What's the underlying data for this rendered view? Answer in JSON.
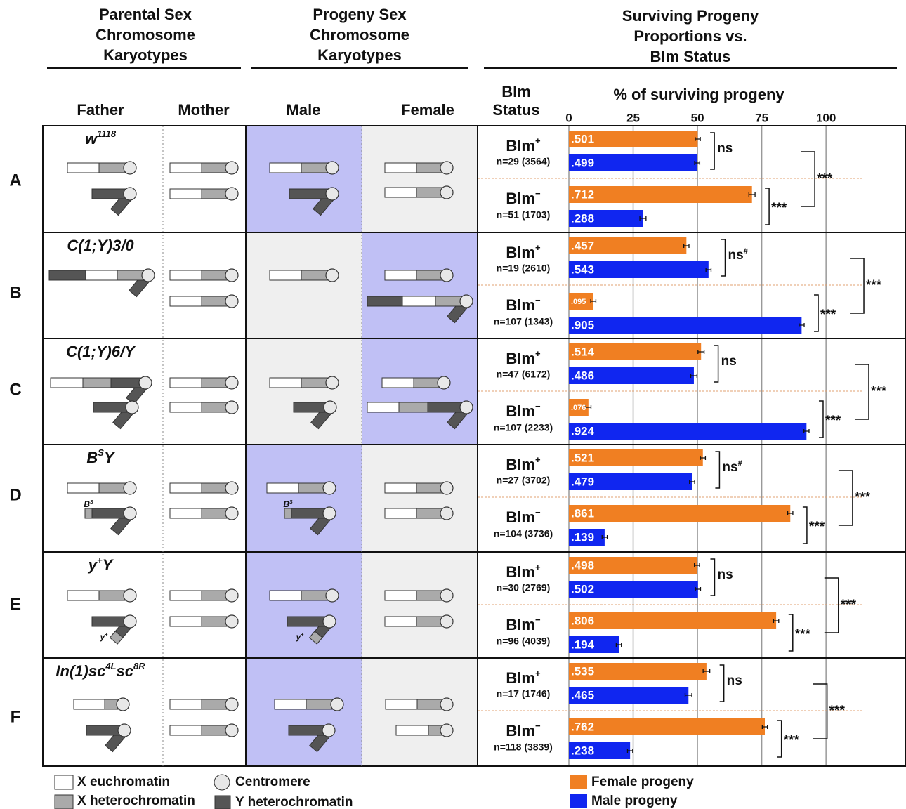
{
  "headers": {
    "parental": [
      "Parental Sex",
      "Chromosome",
      "Karyotypes"
    ],
    "progeny": [
      "Progeny Sex",
      "Chromosome",
      "Karyotypes"
    ],
    "surviving": [
      "Surviving Progeny",
      "Proportions vs.",
      "Blm Status"
    ]
  },
  "columns": {
    "father": "Father",
    "mother": "Mother",
    "male": "Male",
    "female": "Female",
    "blm_status": [
      "Blm",
      "Status"
    ]
  },
  "rows": [
    {
      "letter": "A",
      "genotype": [
        {
          "text": "w"
        },
        {
          "text": "1118",
          "sup": true
        }
      ],
      "highlight": "male"
    },
    {
      "letter": "B",
      "genotype": [
        {
          "text": "C(1;Y)3/0"
        }
      ],
      "highlight": "female"
    },
    {
      "letter": "C",
      "genotype": [
        {
          "text": "C(1;Y)6/Y"
        }
      ],
      "highlight": "female"
    },
    {
      "letter": "D",
      "genotype": [
        {
          "text": "B"
        },
        {
          "text": "S",
          "sup": true
        },
        {
          "text": "Y"
        }
      ],
      "highlight": "male",
      "markers": [
        [
          {
            "text": "B"
          },
          {
            "text": "S",
            "sup": true
          }
        ],
        [
          {
            "text": "B"
          },
          {
            "text": "S",
            "sup": true
          }
        ]
      ]
    },
    {
      "letter": "E",
      "genotype": [
        {
          "text": "y"
        },
        {
          "text": "+",
          "sup": true
        },
        {
          "text": "Y"
        }
      ],
      "highlight": "male",
      "markers": [
        [
          {
            "text": "y"
          },
          {
            "text": "+",
            "sup": true
          }
        ],
        [
          {
            "text": "y"
          },
          {
            "text": "+",
            "sup": true
          }
        ]
      ]
    },
    {
      "letter": "F",
      "genotype": [
        {
          "text": "In(1)sc"
        },
        {
          "text": "4L",
          "sup": true
        },
        {
          "text": "sc"
        },
        {
          "text": "8R",
          "sup": true
        }
      ],
      "highlight": "male"
    }
  ],
  "legend": {
    "x_euchromatin": "X euchromatin",
    "x_heterochromatin": "X heterochromatin",
    "centromere": "Centromere",
    "y_heterochromatin": "Y heterochromatin"
  },
  "chart_data": {
    "type": "bar",
    "orientation": "horizontal",
    "x_title": "% of surviving progeny",
    "categories": [
      "n=29 (3564)",
      "n=51 (1703)",
      "n=19 (2610)",
      "n=107 (1343)",
      "n=47 (6172)",
      "n=107 (2233)",
      "n=27 (3702)",
      "n=104 (3736)",
      "n=30 (2769)",
      "n=96 (4039)",
      "n=17 (1746)",
      "n=118 (3839)"
    ],
    "status": [
      [
        {
          "text": "Blm"
        },
        {
          "text": "+",
          "sup": true
        }
      ],
      [
        {
          "text": "Blm"
        },
        {
          "text": "−",
          "sup": true
        }
      ],
      [
        {
          "text": "Blm"
        },
        {
          "text": "+",
          "sup": true
        }
      ],
      [
        {
          "text": "Blm"
        },
        {
          "text": "−",
          "sup": true
        }
      ],
      [
        {
          "text": "Blm"
        },
        {
          "text": "+",
          "sup": true
        }
      ],
      [
        {
          "text": "Blm"
        },
        {
          "text": "−",
          "sup": true
        }
      ],
      [
        {
          "text": "Blm"
        },
        {
          "text": "+",
          "sup": true
        }
      ],
      [
        {
          "text": "Blm"
        },
        {
          "text": "−",
          "sup": true
        }
      ],
      [
        {
          "text": "Blm"
        },
        {
          "text": "+",
          "sup": true
        }
      ],
      [
        {
          "text": "Blm"
        },
        {
          "text": "−",
          "sup": true
        }
      ],
      [
        {
          "text": "Blm"
        },
        {
          "text": "+",
          "sup": true
        }
      ],
      [
        {
          "text": "Blm"
        },
        {
          "text": "−",
          "sup": true
        }
      ]
    ],
    "series": [
      {
        "name": "Female progeny",
        "color": "#f07f22",
        "values": [
          50.1,
          71.2,
          45.7,
          9.5,
          51.4,
          7.6,
          52.1,
          86.1,
          49.8,
          80.6,
          53.5,
          76.2
        ],
        "value_labels": [
          ".501",
          ".712",
          ".457",
          ".095",
          ".514",
          ".076",
          ".521",
          ".861",
          ".498",
          ".806",
          ".535",
          ".762"
        ],
        "errors": [
          1,
          1.2,
          1,
          1,
          1.2,
          1,
          1,
          1,
          1,
          1,
          1.3,
          1
        ]
      },
      {
        "name": "Male progeny",
        "color": "#1026f0",
        "values": [
          49.9,
          28.8,
          54.3,
          90.5,
          48.6,
          92.4,
          47.9,
          13.9,
          50.2,
          19.4,
          46.5,
          23.8
        ],
        "value_labels": [
          ".499",
          ".288",
          ".543",
          ".905",
          ".486",
          ".924",
          ".479",
          ".139",
          ".502",
          ".194",
          ".465",
          ".238"
        ],
        "errors": [
          1,
          1.2,
          1,
          1,
          1.2,
          1,
          1,
          1,
          1,
          1,
          1.3,
          1
        ]
      }
    ],
    "xlim": [
      0,
      130
    ],
    "xticks": [
      0,
      25,
      50,
      75,
      100
    ],
    "grid": true,
    "significance": [
      {
        "blm_plus": [
          {
            "text": "ns"
          }
        ],
        "blm_minus": "***",
        "between": "***"
      },
      {
        "blm_plus": [
          {
            "text": "ns"
          },
          {
            "text": "#",
            "sup": true
          }
        ],
        "blm_minus": "***",
        "between": "***"
      },
      {
        "blm_plus": [
          {
            "text": "ns"
          }
        ],
        "blm_minus": "***",
        "between": "***"
      },
      {
        "blm_plus": [
          {
            "text": "ns"
          },
          {
            "text": "#",
            "sup": true
          }
        ],
        "blm_minus": "***",
        "between": "***"
      },
      {
        "blm_plus": [
          {
            "text": "ns"
          }
        ],
        "blm_minus": "***",
        "between": "***"
      },
      {
        "blm_plus": [
          {
            "text": "ns"
          }
        ],
        "blm_minus": "***",
        "between": "***"
      }
    ]
  }
}
